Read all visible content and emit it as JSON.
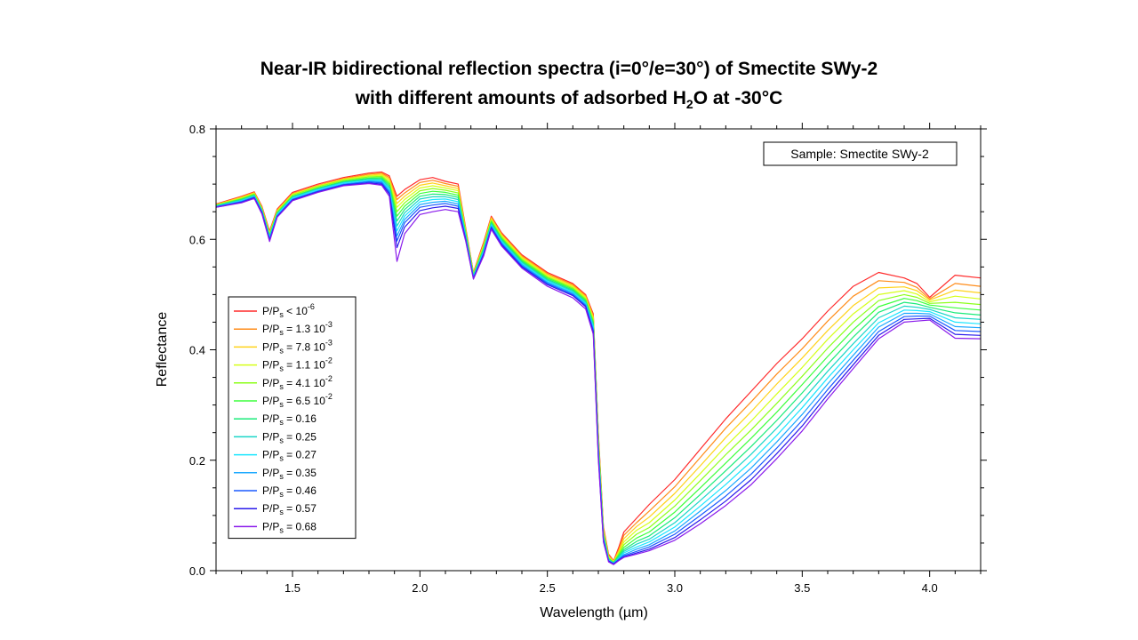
{
  "title_line1": "Near-IR bidirectional reflection spectra (i=0°/e=30°) of Smectite SWy-2",
  "title_line2_pre": "with different amounts of adsorbed H",
  "title_line2_sub": "2",
  "title_line2_post": "O at -30°C",
  "chart_data": {
    "type": "line",
    "title": "Near-IR bidirectional reflection spectra (i=0°/e=30°) of Smectite SWy-2 with different amounts of adsorbed H2O at -30°C",
    "xlabel": "Wavelength (µm)",
    "ylabel": "Reflectance",
    "xlim": [
      1.2,
      4.2
    ],
    "ylim": [
      0.0,
      0.8
    ],
    "xticks": [
      1.5,
      2.0,
      2.5,
      3.0,
      3.5,
      4.0
    ],
    "xtick_labels": [
      "1.5",
      "2.0",
      "2.5",
      "3.0",
      "3.5",
      "4.0"
    ],
    "yticks": [
      0.0,
      0.2,
      0.4,
      0.6,
      0.8
    ],
    "ytick_labels": [
      "0.0",
      "0.2",
      "0.4",
      "0.6",
      "0.8"
    ],
    "grid": false,
    "legend_position": "bottom-left",
    "annotation": "Sample: Smectite SWy-2",
    "x": [
      1.2,
      1.3,
      1.35,
      1.38,
      1.41,
      1.44,
      1.5,
      1.6,
      1.7,
      1.8,
      1.85,
      1.88,
      1.91,
      1.94,
      2.0,
      2.05,
      2.1,
      2.15,
      2.18,
      2.21,
      2.25,
      2.28,
      2.32,
      2.4,
      2.5,
      2.6,
      2.65,
      2.68,
      2.7,
      2.72,
      2.74,
      2.76,
      2.78,
      2.8,
      2.85,
      2.9,
      3.0,
      3.1,
      3.2,
      3.3,
      3.4,
      3.5,
      3.6,
      3.7,
      3.8,
      3.9,
      3.95,
      4.0,
      4.1,
      4.2
    ],
    "series": [
      {
        "name": "P/Ps < 10-6",
        "color": "#ff2a2a",
        "values": [
          0.664,
          0.678,
          0.686,
          0.66,
          0.615,
          0.655,
          0.685,
          0.7,
          0.712,
          0.72,
          0.722,
          0.715,
          0.678,
          0.69,
          0.708,
          0.712,
          0.705,
          0.7,
          0.62,
          0.54,
          0.595,
          0.642,
          0.612,
          0.572,
          0.54,
          0.52,
          0.5,
          0.465,
          0.25,
          0.08,
          0.03,
          0.018,
          0.042,
          0.07,
          0.095,
          0.12,
          0.165,
          0.22,
          0.275,
          0.325,
          0.375,
          0.42,
          0.47,
          0.515,
          0.54,
          0.53,
          0.52,
          0.495,
          0.535,
          0.53
        ]
      },
      {
        "name": "P/Ps = 1.3 10-3",
        "color": "#ff8c1a",
        "values": [
          0.663,
          0.677,
          0.685,
          0.658,
          0.613,
          0.653,
          0.683,
          0.698,
          0.71,
          0.718,
          0.72,
          0.712,
          0.672,
          0.684,
          0.703,
          0.707,
          0.701,
          0.696,
          0.618,
          0.539,
          0.592,
          0.64,
          0.61,
          0.57,
          0.538,
          0.518,
          0.498,
          0.462,
          0.246,
          0.077,
          0.028,
          0.017,
          0.038,
          0.064,
          0.087,
          0.108,
          0.152,
          0.205,
          0.258,
          0.306,
          0.356,
          0.402,
          0.452,
          0.497,
          0.525,
          0.522,
          0.513,
          0.492,
          0.52,
          0.515
        ]
      },
      {
        "name": "P/Ps = 7.8 10-3",
        "color": "#ffd21a",
        "values": [
          0.663,
          0.676,
          0.684,
          0.657,
          0.611,
          0.652,
          0.682,
          0.697,
          0.709,
          0.716,
          0.718,
          0.709,
          0.665,
          0.678,
          0.698,
          0.702,
          0.697,
          0.692,
          0.616,
          0.538,
          0.59,
          0.638,
          0.608,
          0.568,
          0.536,
          0.516,
          0.496,
          0.459,
          0.242,
          0.074,
          0.026,
          0.017,
          0.035,
          0.058,
          0.08,
          0.097,
          0.14,
          0.19,
          0.241,
          0.288,
          0.338,
          0.385,
          0.435,
          0.48,
          0.512,
          0.514,
          0.507,
          0.49,
          0.508,
          0.503
        ]
      },
      {
        "name": "P/Ps = 1.1 10-2",
        "color": "#d6ff1a",
        "values": [
          0.662,
          0.675,
          0.683,
          0.656,
          0.61,
          0.651,
          0.681,
          0.696,
          0.708,
          0.715,
          0.716,
          0.706,
          0.658,
          0.672,
          0.693,
          0.697,
          0.693,
          0.688,
          0.614,
          0.537,
          0.588,
          0.636,
          0.606,
          0.566,
          0.534,
          0.514,
          0.494,
          0.456,
          0.238,
          0.071,
          0.024,
          0.016,
          0.032,
          0.052,
          0.073,
          0.087,
          0.128,
          0.176,
          0.225,
          0.271,
          0.32,
          0.368,
          0.419,
          0.465,
          0.5,
          0.507,
          0.501,
          0.487,
          0.497,
          0.492
        ]
      },
      {
        "name": "P/Ps = 4.1 10-2",
        "color": "#8cff1a",
        "values": [
          0.662,
          0.674,
          0.682,
          0.655,
          0.608,
          0.65,
          0.68,
          0.695,
          0.707,
          0.713,
          0.714,
          0.703,
          0.65,
          0.666,
          0.688,
          0.692,
          0.689,
          0.684,
          0.612,
          0.536,
          0.586,
          0.634,
          0.604,
          0.564,
          0.532,
          0.512,
          0.492,
          0.453,
          0.234,
          0.068,
          0.023,
          0.015,
          0.03,
          0.047,
          0.066,
          0.078,
          0.117,
          0.163,
          0.21,
          0.255,
          0.303,
          0.352,
          0.403,
          0.45,
          0.489,
          0.5,
          0.495,
          0.484,
          0.486,
          0.482
        ]
      },
      {
        "name": "P/Ps = 6.5 10-2",
        "color": "#3cff3c",
        "values": [
          0.661,
          0.673,
          0.681,
          0.654,
          0.607,
          0.648,
          0.678,
          0.693,
          0.705,
          0.711,
          0.712,
          0.7,
          0.642,
          0.66,
          0.683,
          0.687,
          0.685,
          0.68,
          0.61,
          0.535,
          0.584,
          0.632,
          0.602,
          0.562,
          0.53,
          0.51,
          0.49,
          0.45,
          0.23,
          0.066,
          0.022,
          0.015,
          0.028,
          0.042,
          0.059,
          0.07,
          0.106,
          0.15,
          0.195,
          0.24,
          0.287,
          0.337,
          0.388,
          0.436,
          0.478,
          0.493,
          0.489,
          0.481,
          0.476,
          0.472
        ]
      },
      {
        "name": "P/Ps = 0.16",
        "color": "#1aeb7a",
        "values": [
          0.661,
          0.672,
          0.68,
          0.653,
          0.606,
          0.647,
          0.677,
          0.692,
          0.704,
          0.71,
          0.71,
          0.697,
          0.633,
          0.654,
          0.678,
          0.682,
          0.681,
          0.676,
          0.608,
          0.534,
          0.582,
          0.63,
          0.6,
          0.56,
          0.528,
          0.508,
          0.488,
          0.447,
          0.226,
          0.064,
          0.021,
          0.014,
          0.026,
          0.038,
          0.053,
          0.063,
          0.096,
          0.138,
          0.181,
          0.225,
          0.272,
          0.322,
          0.374,
          0.423,
          0.468,
          0.486,
          0.483,
          0.477,
          0.467,
          0.463
        ]
      },
      {
        "name": "P/Ps = 0.25",
        "color": "#1ad6c8",
        "values": [
          0.66,
          0.671,
          0.679,
          0.652,
          0.604,
          0.646,
          0.676,
          0.691,
          0.703,
          0.708,
          0.708,
          0.694,
          0.624,
          0.648,
          0.673,
          0.677,
          0.677,
          0.672,
          0.606,
          0.533,
          0.58,
          0.628,
          0.598,
          0.558,
          0.526,
          0.506,
          0.486,
          0.444,
          0.222,
          0.062,
          0.02,
          0.014,
          0.024,
          0.035,
          0.048,
          0.057,
          0.087,
          0.127,
          0.168,
          0.211,
          0.258,
          0.308,
          0.361,
          0.411,
          0.458,
          0.479,
          0.477,
          0.473,
          0.458,
          0.455
        ]
      },
      {
        "name": "P/Ps = 0.27",
        "color": "#1ae6ff",
        "values": [
          0.66,
          0.67,
          0.678,
          0.651,
          0.603,
          0.645,
          0.675,
          0.69,
          0.702,
          0.707,
          0.706,
          0.691,
          0.615,
          0.642,
          0.668,
          0.672,
          0.673,
          0.668,
          0.604,
          0.532,
          0.578,
          0.626,
          0.596,
          0.556,
          0.524,
          0.504,
          0.484,
          0.441,
          0.218,
          0.06,
          0.019,
          0.013,
          0.022,
          0.032,
          0.043,
          0.052,
          0.079,
          0.117,
          0.156,
          0.198,
          0.245,
          0.295,
          0.349,
          0.4,
          0.449,
          0.472,
          0.471,
          0.469,
          0.45,
          0.447
        ]
      },
      {
        "name": "P/Ps = 0.35",
        "color": "#1aa8ff",
        "values": [
          0.659,
          0.669,
          0.677,
          0.65,
          0.601,
          0.643,
          0.673,
          0.688,
          0.7,
          0.705,
          0.704,
          0.688,
          0.606,
          0.636,
          0.663,
          0.667,
          0.669,
          0.664,
          0.602,
          0.531,
          0.576,
          0.624,
          0.594,
          0.554,
          0.522,
          0.502,
          0.482,
          0.438,
          0.214,
          0.058,
          0.018,
          0.013,
          0.021,
          0.029,
          0.039,
          0.047,
          0.072,
          0.108,
          0.145,
          0.186,
          0.233,
          0.283,
          0.338,
          0.39,
          0.441,
          0.466,
          0.466,
          0.465,
          0.442,
          0.44
        ]
      },
      {
        "name": "P/Ps = 0.46",
        "color": "#1a5aff",
        "values": [
          0.659,
          0.668,
          0.676,
          0.649,
          0.6,
          0.642,
          0.672,
          0.687,
          0.699,
          0.704,
          0.702,
          0.685,
          0.597,
          0.63,
          0.658,
          0.662,
          0.665,
          0.66,
          0.6,
          0.53,
          0.574,
          0.622,
          0.592,
          0.552,
          0.52,
          0.5,
          0.48,
          0.435,
          0.21,
          0.056,
          0.018,
          0.012,
          0.02,
          0.027,
          0.035,
          0.043,
          0.066,
          0.1,
          0.135,
          0.175,
          0.222,
          0.272,
          0.328,
          0.381,
          0.433,
          0.46,
          0.461,
          0.461,
          0.435,
          0.433
        ]
      },
      {
        "name": "P/Ps = 0.57",
        "color": "#2a1aeb",
        "values": [
          0.658,
          0.667,
          0.675,
          0.648,
          0.598,
          0.641,
          0.671,
          0.686,
          0.698,
          0.702,
          0.7,
          0.682,
          0.585,
          0.622,
          0.652,
          0.657,
          0.66,
          0.656,
          0.598,
          0.529,
          0.572,
          0.62,
          0.59,
          0.55,
          0.518,
          0.498,
          0.478,
          0.432,
          0.206,
          0.054,
          0.017,
          0.012,
          0.019,
          0.025,
          0.032,
          0.039,
          0.06,
          0.092,
          0.126,
          0.165,
          0.212,
          0.262,
          0.319,
          0.373,
          0.426,
          0.455,
          0.456,
          0.457,
          0.428,
          0.426
        ]
      },
      {
        "name": "P/Ps = 0.68",
        "color": "#8a1aeb",
        "values": [
          0.658,
          0.666,
          0.674,
          0.646,
          0.596,
          0.64,
          0.67,
          0.685,
          0.697,
          0.701,
          0.698,
          0.678,
          0.56,
          0.61,
          0.645,
          0.65,
          0.654,
          0.65,
          0.596,
          0.528,
          0.57,
          0.618,
          0.588,
          0.548,
          0.515,
          0.494,
          0.474,
          0.428,
          0.202,
          0.052,
          0.016,
          0.011,
          0.018,
          0.024,
          0.03,
          0.036,
          0.055,
          0.085,
          0.118,
          0.156,
          0.203,
          0.253,
          0.311,
          0.366,
          0.42,
          0.45,
          0.452,
          0.454,
          0.421,
          0.42
        ]
      }
    ],
    "legend": [
      {
        "base": "P/P",
        "sub": "s",
        "rel": " < 10",
        "sup": "-6"
      },
      {
        "base": "P/P",
        "sub": "s",
        "rel": " = 1.3 10",
        "sup": "-3"
      },
      {
        "base": "P/P",
        "sub": "s",
        "rel": " = 7.8 10",
        "sup": "-3"
      },
      {
        "base": "P/P",
        "sub": "s",
        "rel": " = 1.1 10",
        "sup": "-2"
      },
      {
        "base": "P/P",
        "sub": "s",
        "rel": " = 4.1 10",
        "sup": "-2"
      },
      {
        "base": "P/P",
        "sub": "s",
        "rel": " = 6.5 10",
        "sup": "-2"
      },
      {
        "base": "P/P",
        "sub": "s",
        "rel": " = 0.16",
        "sup": ""
      },
      {
        "base": "P/P",
        "sub": "s",
        "rel": " = 0.25",
        "sup": ""
      },
      {
        "base": "P/P",
        "sub": "s",
        "rel": " = 0.27",
        "sup": ""
      },
      {
        "base": "P/P",
        "sub": "s",
        "rel": " = 0.35",
        "sup": ""
      },
      {
        "base": "P/P",
        "sub": "s",
        "rel": " = 0.46",
        "sup": ""
      },
      {
        "base": "P/P",
        "sub": "s",
        "rel": " = 0.57",
        "sup": ""
      },
      {
        "base": "P/P",
        "sub": "s",
        "rel": " = 0.68",
        "sup": ""
      }
    ]
  }
}
